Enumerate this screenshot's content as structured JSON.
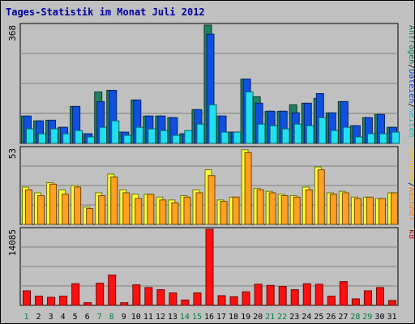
{
  "title": "Tages-Statistik im Monat Juli 2012",
  "chart_data": {
    "type": "bar",
    "title": "Tages-Statistik im Monat Juli 2012",
    "categories": [
      "1",
      "2",
      "3",
      "4",
      "5",
      "6",
      "7",
      "8",
      "9",
      "10",
      "11",
      "12",
      "13",
      "14",
      "15",
      "16",
      "17",
      "18",
      "19",
      "20",
      "21",
      "22",
      "23",
      "24",
      "25",
      "26",
      "27",
      "28",
      "29",
      "30",
      "31"
    ],
    "weekend_days": [
      "1",
      "7",
      "8",
      "14",
      "15",
      "21",
      "22",
      "28",
      "29"
    ],
    "colors": {
      "weekday_label": "#000000",
      "weekend_label": "#008040"
    },
    "panels": [
      {
        "id": "top",
        "y_max_label": "368",
        "ylim": [
          0,
          368
        ],
        "grid": true,
        "side_label": [
          {
            "text": "Anfragen",
            "color": "#008060"
          },
          {
            "text": "/",
            "color": "#000000"
          },
          {
            "text": "Dateien",
            "color": "#0050e0"
          },
          {
            "text": "/",
            "color": "#000000"
          },
          {
            "text": "Seiten",
            "color": "#00c0e0"
          }
        ],
        "series": [
          {
            "name": "Anfragen",
            "color": "#208060",
            "values": [
              85,
              70,
              72,
              50,
              115,
              30,
              160,
              165,
              35,
              135,
              85,
              85,
              80,
              30,
              105,
              368,
              85,
              35,
              200,
              145,
              100,
              100,
              120,
              125,
              140,
              95,
              130,
              55,
              80,
              90,
              50
            ]
          },
          {
            "name": "Dateien",
            "color": "#1050e0",
            "values": [
              85,
              70,
              72,
              50,
              115,
              30,
              130,
              165,
              35,
              135,
              85,
              85,
              80,
              30,
              105,
              340,
              85,
              35,
              200,
              125,
              100,
              100,
              95,
              125,
              155,
              95,
              130,
              55,
              80,
              90,
              50
            ]
          },
          {
            "name": "Seiten",
            "color": "#20e0f0",
            "values": [
              45,
              30,
              45,
              30,
              40,
              20,
              50,
              70,
              25,
              50,
              45,
              40,
              25,
              40,
              60,
              120,
              35,
              35,
              160,
              60,
              55,
              45,
              60,
              55,
              80,
              40,
              50,
              20,
              30,
              30,
              35
            ]
          }
        ]
      },
      {
        "id": "mid",
        "y_max_label": "53",
        "ylim": [
          0,
          53
        ],
        "grid": true,
        "side_label": [
          {
            "text": "Besuche",
            "color": "#ffc000"
          },
          {
            "text": "/",
            "color": "#000000"
          },
          {
            "text": "Rechner",
            "color": "#ff8000"
          }
        ],
        "series": [
          {
            "name": "Besuche",
            "color": "#ffff30",
            "values": [
              26,
              22,
              29,
              24,
              27,
              12,
              22,
              35,
              24,
              21,
              21,
              19,
              17,
              20,
              24,
              38,
              17,
              19,
              52,
              25,
              23,
              21,
              20,
              26,
              40,
              22,
              23,
              19,
              19,
              18,
              22
            ]
          },
          {
            "name": "Rechner",
            "color": "#ffa020",
            "values": [
              24,
              20,
              28,
              21,
              26,
              11,
              20,
              33,
              22,
              18,
              21,
              17,
              15,
              19,
              22,
              34,
              16,
              19,
              50,
              24,
              22,
              20,
              19,
              24,
              38,
              21,
              22,
              18,
              19,
              18,
              22
            ]
          }
        ]
      },
      {
        "id": "bot",
        "y_max_label": "14085",
        "ylim": [
          0,
          14085
        ],
        "grid": true,
        "side_label": [
          {
            "text": "kB",
            "color": "#e00000"
          }
        ],
        "series": [
          {
            "name": "kB",
            "color": "#ff1010",
            "values": [
              2700,
              1700,
              1500,
              1700,
              4000,
              500,
              4100,
              5600,
              500,
              3800,
              3300,
              2900,
              2300,
              1000,
              2300,
              14085,
              1800,
              1600,
              2500,
              3900,
              3700,
              3500,
              2900,
              4000,
              3900,
              1700,
              4400,
              1200,
              2700,
              3300,
              900
            ]
          }
        ]
      }
    ]
  }
}
